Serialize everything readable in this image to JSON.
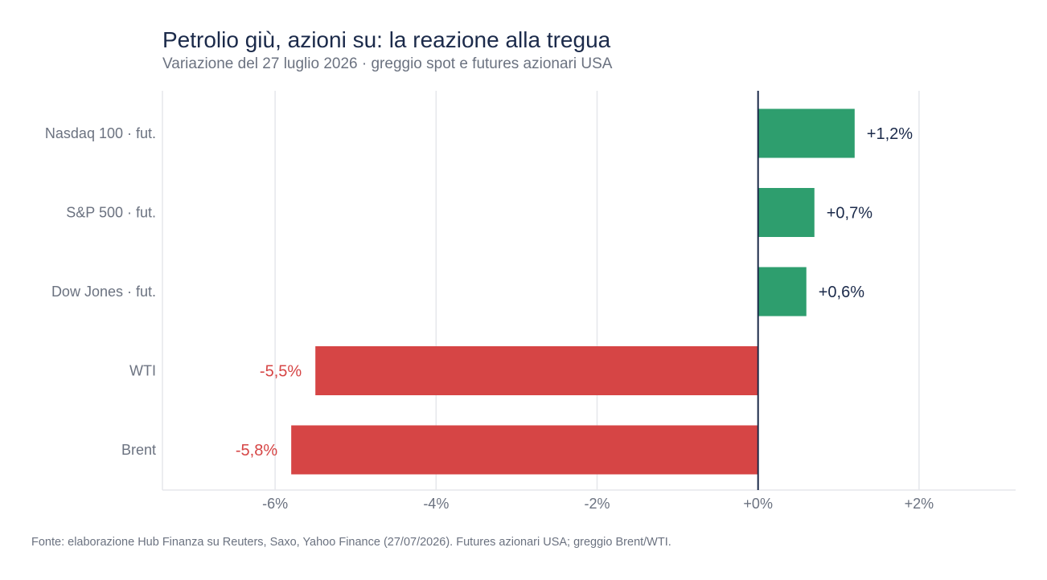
{
  "chart_data": {
    "type": "bar",
    "orientation": "horizontal",
    "title": "Petrolio giù, azioni su: la reazione alla tregua",
    "subtitle": "Variazione del 27 luglio 2026 · greggio spot e futures azionari USA",
    "source": "Fonte: elaborazione Hub Finanza su Reuters, Saxo, Yahoo Finance (27/07/2026). Futures azionari USA; greggio Brent/WTI.",
    "categories": [
      "Nasdaq 100 · fut.",
      "S&P 500 · fut.",
      "Dow Jones · fut.",
      "WTI",
      "Brent"
    ],
    "values": [
      1.2,
      0.7,
      0.6,
      -5.5,
      -5.8
    ],
    "value_labels": [
      "+1,2%",
      "+0,7%",
      "+0,6%",
      "-5,5%",
      "-5,8%"
    ],
    "xlim": [
      -7.4,
      3.2
    ],
    "xticks": [
      -6,
      -4,
      -2,
      0,
      2
    ],
    "xtick_labels": [
      "-6%",
      "-4%",
      "-2%",
      "+0%",
      "+2%"
    ],
    "grid": "vertical",
    "colors": {
      "positive": "#2e9e6e",
      "negative": "#d64545",
      "zero_line": "#1b2a4a",
      "grid": "#e5e7eb",
      "positive_label": "#1b2a4a",
      "negative_label": "#d64545"
    }
  }
}
